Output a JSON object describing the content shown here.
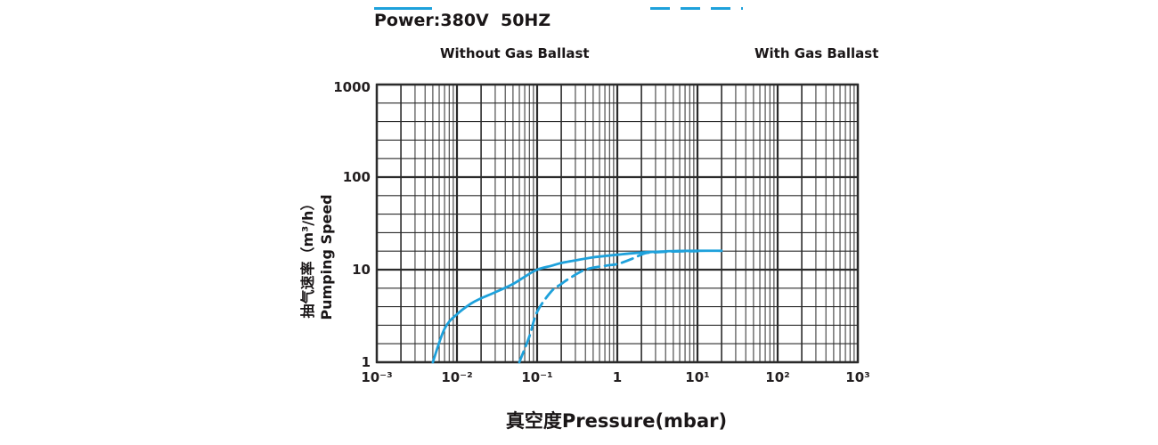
{
  "chart_data": {
    "type": "line",
    "title": "Power:380V  50HZ",
    "xlabel": "真空度Pressure(mbar)",
    "ylabel_line1": "抽气速率（m³/h）",
    "ylabel_line2": "Pumping Speed",
    "x_scale": "log",
    "y_scale": "log",
    "xlim": [
      0.001,
      1000
    ],
    "ylim": [
      1,
      1000
    ],
    "x_ticks": [
      "10⁻³",
      "10⁻²",
      "10⁻¹",
      "1",
      "10¹",
      "10²",
      "10³"
    ],
    "y_ticks": [
      "1000",
      "100",
      "10",
      "1"
    ],
    "grid": true,
    "legend_position": "top",
    "colors": {
      "accent": "#1EA1DB",
      "grid": "#2B2B2B",
      "text": "#231F20"
    },
    "series": [
      {
        "name": "Without Gas Ballast",
        "style": "solid",
        "points": [
          [
            0.005,
            1
          ],
          [
            0.007,
            2.3
          ],
          [
            0.01,
            3.3
          ],
          [
            0.015,
            4.3
          ],
          [
            0.02,
            4.9
          ],
          [
            0.03,
            5.7
          ],
          [
            0.05,
            7
          ],
          [
            0.07,
            8.4
          ],
          [
            0.1,
            10
          ],
          [
            0.15,
            11
          ],
          [
            0.2,
            11.8
          ],
          [
            0.3,
            12.6
          ],
          [
            0.5,
            13.6
          ],
          [
            1,
            14.5
          ],
          [
            1.5,
            15
          ],
          [
            2.2,
            15.4
          ],
          [
            3,
            15.6
          ],
          [
            5,
            15.9
          ],
          [
            10,
            16
          ],
          [
            20,
            16
          ]
        ]
      },
      {
        "name": "With Gas Ballast",
        "style": "dashed",
        "points": [
          [
            0.06,
            1
          ],
          [
            0.08,
            1.9
          ],
          [
            0.1,
            3.5
          ],
          [
            0.15,
            5.8
          ],
          [
            0.2,
            7
          ],
          [
            0.25,
            8
          ],
          [
            0.4,
            10
          ],
          [
            0.7,
            11
          ],
          [
            1,
            11.5
          ],
          [
            1.5,
            13
          ],
          [
            2.2,
            15
          ],
          [
            3,
            15.4
          ],
          [
            5,
            15.7
          ],
          [
            10,
            15.85
          ]
        ]
      }
    ]
  }
}
